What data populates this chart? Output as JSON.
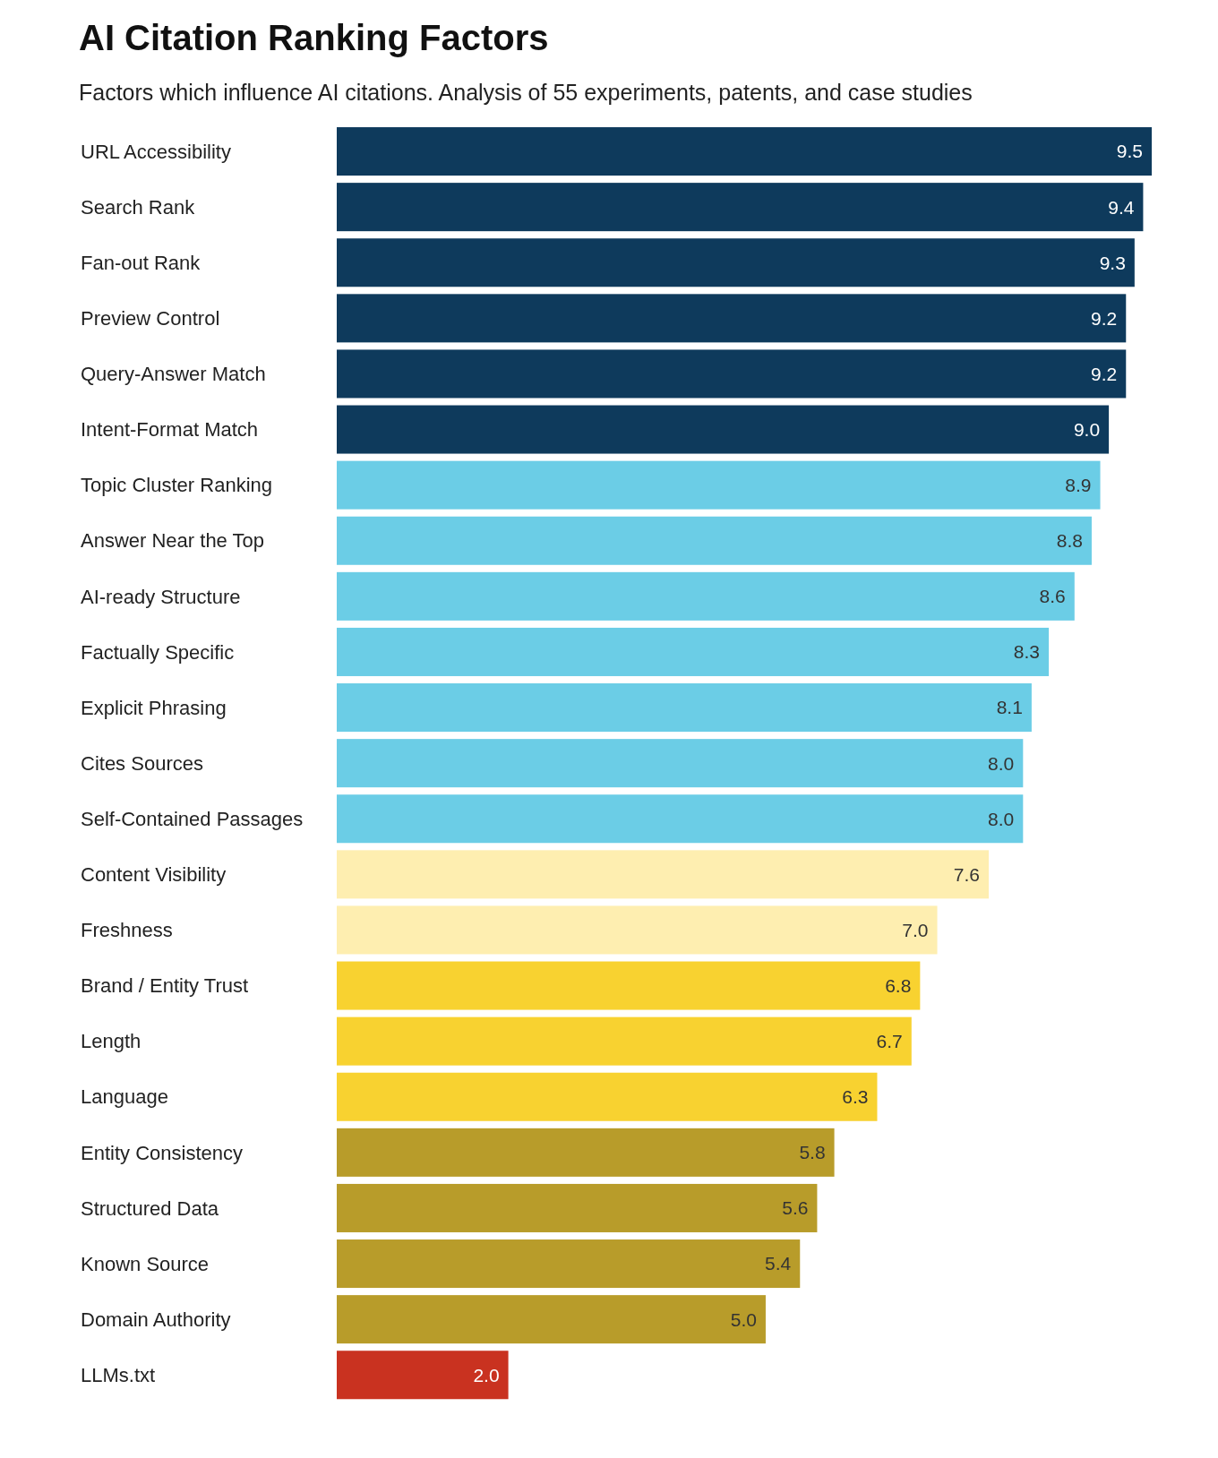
{
  "chart_data": {
    "type": "bar",
    "orientation": "horizontal",
    "title": "AI Citation Ranking Factors",
    "subtitle": "Factors which influence AI citations. Analysis of 55 experiments, patents, and case studies",
    "categories": [
      "URL Accessibility",
      "Search Rank",
      "Fan-out Rank",
      "Preview Control",
      "Query-Answer Match",
      "Intent-Format Match",
      "Topic Cluster Ranking",
      "Answer Near the Top",
      "AI-ready Structure",
      "Factually Specific",
      "Explicit Phrasing",
      "Cites Sources",
      "Self-Contained Passages",
      "Content Visibility",
      "Freshness",
      "Brand / Entity Trust",
      "Length",
      "Language",
      "Entity Consistency",
      "Structured Data",
      "Known Source",
      "Domain Authority",
      "LLMs.txt"
    ],
    "values": [
      9.5,
      9.4,
      9.3,
      9.2,
      9.2,
      9.0,
      8.9,
      8.8,
      8.6,
      8.3,
      8.1,
      8.0,
      8.0,
      7.6,
      7.0,
      6.8,
      6.7,
      6.3,
      5.8,
      5.6,
      5.4,
      5.0,
      2.0
    ],
    "value_labels": [
      "9.5",
      "9.4",
      "9.3",
      "9.2",
      "9.2",
      "9.0",
      "8.9",
      "8.8",
      "8.6",
      "8.3",
      "8.1",
      "8.0",
      "8.0",
      "7.6",
      "7.0",
      "6.8",
      "6.7",
      "6.3",
      "5.8",
      "5.6",
      "5.4",
      "5.0",
      "2.0"
    ],
    "colors": [
      "#0e3a5c",
      "#0e3a5c",
      "#0e3a5c",
      "#0e3a5c",
      "#0e3a5c",
      "#0e3a5c",
      "#6bcde6",
      "#6bcde6",
      "#6bcde6",
      "#6bcde6",
      "#6bcde6",
      "#6bcde6",
      "#6bcde6",
      "#feeeb0",
      "#feeeb0",
      "#f8d230",
      "#f8d230",
      "#f8d230",
      "#b89c2a",
      "#b89c2a",
      "#b89c2a",
      "#b89c2a",
      "#c93220"
    ],
    "xlim": [
      0,
      9.5
    ],
    "tick_labels": "y"
  }
}
